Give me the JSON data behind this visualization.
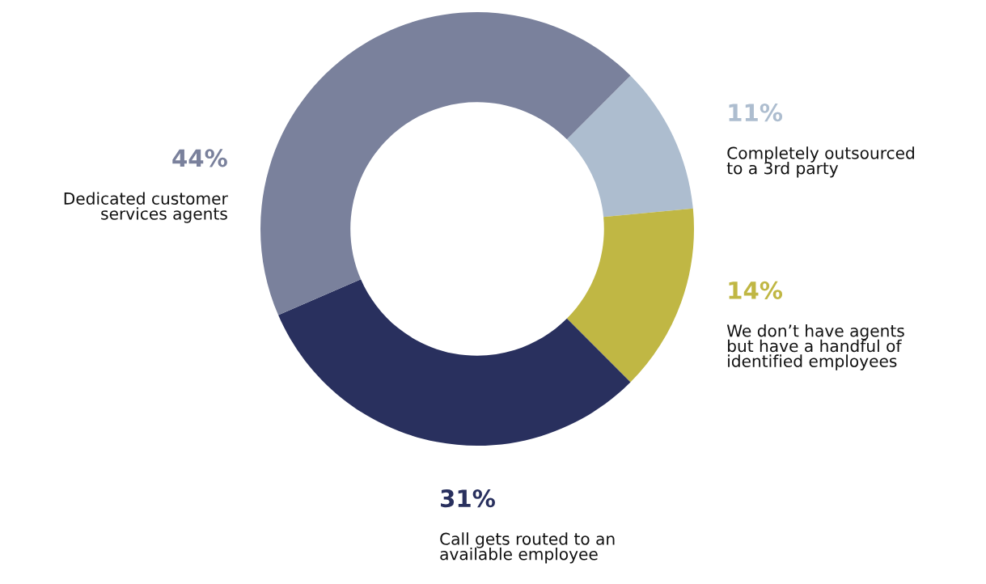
{
  "chart_data": {
    "type": "donut",
    "categories": [
      "Completely outsourced\nto a 3rd party",
      "We don’t have agents\nbut have a handful of\nidentified employees",
      "Call gets routed to an\navailable employee",
      "Dedicated customer\nservices agents"
    ],
    "values": [
      11,
      14,
      31,
      44
    ],
    "value_labels": [
      "11%",
      "14%",
      "31%",
      "44%"
    ],
    "colors": [
      "#adbdcf",
      "#c0b744",
      "#29305e",
      "#7a819c"
    ],
    "legend": false
  }
}
